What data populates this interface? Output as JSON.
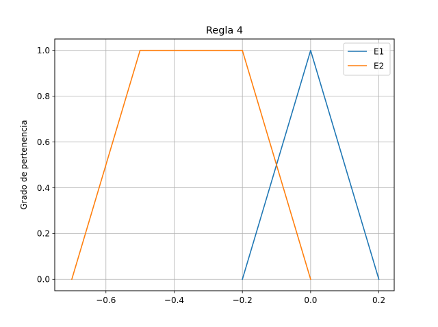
{
  "chart_data": {
    "type": "line",
    "title": "Regla 4",
    "xlabel": "",
    "ylabel": "Grado de pertenencia",
    "xlim": [
      -0.75,
      0.245
    ],
    "ylim": [
      -0.05,
      1.05
    ],
    "xticks": [
      -0.6,
      -0.4,
      -0.2,
      0.0,
      0.2
    ],
    "xtick_labels": [
      "−0.6",
      "−0.4",
      "−0.2",
      "0.0",
      "0.2"
    ],
    "yticks": [
      0.0,
      0.2,
      0.4,
      0.6,
      0.8,
      1.0
    ],
    "ytick_labels": [
      "0.0",
      "0.2",
      "0.4",
      "0.6",
      "0.8",
      "1.0"
    ],
    "grid": true,
    "legend_position": "top-right",
    "series": [
      {
        "name": "E1",
        "color": "#1f77b4",
        "x": [
          -0.2,
          0.0,
          0.2
        ],
        "y": [
          0,
          1,
          0
        ]
      },
      {
        "name": "E2",
        "color": "#ff7f0e",
        "x": [
          -0.7,
          -0.5,
          -0.2,
          0.0
        ],
        "y": [
          0,
          1,
          1,
          0
        ]
      }
    ]
  }
}
